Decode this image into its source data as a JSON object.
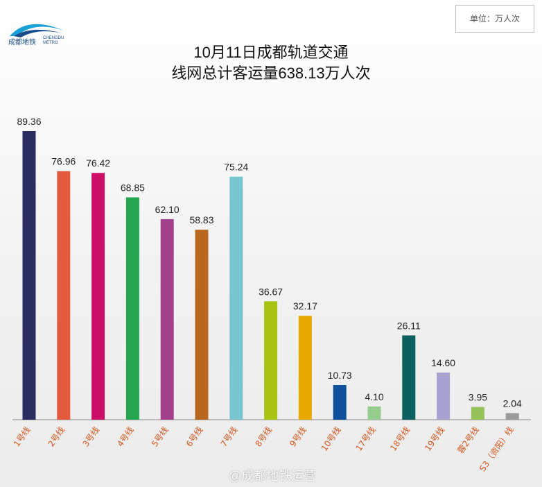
{
  "logo": {
    "name": "成都地铁",
    "sub1": "CHENGDU",
    "sub2": "METRO"
  },
  "unit_label": "单位：万人次",
  "watermark": "@成都地铁运营",
  "chart_data": {
    "type": "bar",
    "title_line1": "10月11日成都轨道交通",
    "title_line2": "线网总计客运量638.13万人次",
    "categories": [
      "1号线",
      "2号线",
      "3号线",
      "4号线",
      "5号线",
      "6号线",
      "7号线",
      "8号线",
      "9号线",
      "10号线",
      "17号线",
      "18号线",
      "19号线",
      "蓉2号线",
      "S3（资阳）线"
    ],
    "values": [
      89.36,
      76.96,
      76.42,
      68.85,
      62.1,
      58.83,
      75.24,
      36.67,
      32.17,
      10.73,
      4.1,
      26.11,
      14.6,
      3.95,
      2.04
    ],
    "value_labels": [
      "89.36",
      "76.96",
      "76.42",
      "68.85",
      "62.10",
      "58.83",
      "75.24",
      "36.67",
      "32.17",
      "10.73",
      "4.10",
      "26.11",
      "14.60",
      "3.95",
      "2.04"
    ],
    "colors": [
      "#2b2d62",
      "#e55a3c",
      "#cc0e68",
      "#24a650",
      "#a2408c",
      "#b8691f",
      "#77c6cf",
      "#a8c212",
      "#e8a904",
      "#0e509b",
      "#94cc8e",
      "#0e5f60",
      "#a7a2cf",
      "#96c25a",
      "#9a9a9a"
    ],
    "ylim": [
      0,
      100
    ],
    "grid": false,
    "legend": "none"
  }
}
